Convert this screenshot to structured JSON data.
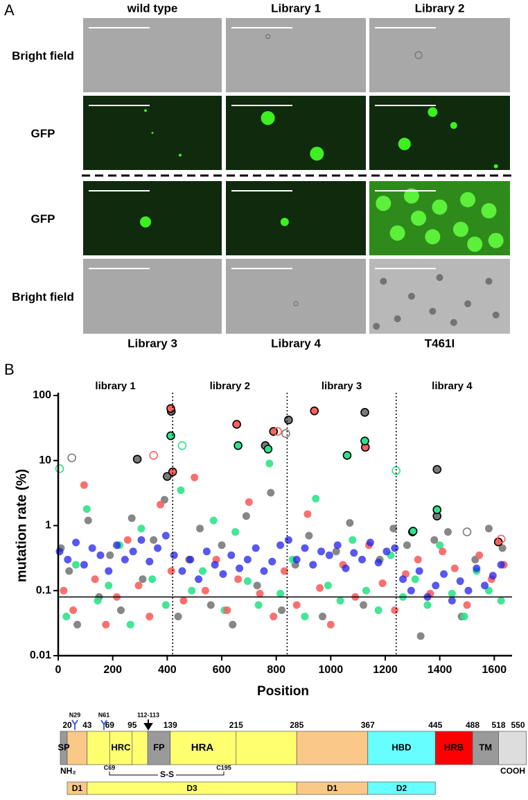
{
  "panel_a": {
    "label": "A",
    "columns_top": [
      "wild type",
      "Library 1",
      "Library 2"
    ],
    "rows": [
      "Bright field",
      "GFP",
      "GFP",
      "Bright field"
    ],
    "columns_bottom": [
      "Library 3",
      "Library 4",
      "T461I"
    ]
  },
  "chart_data": {
    "type": "scatter",
    "panel_label": "B",
    "x_label": "Position",
    "y_label": "mutation rate (%)",
    "xlim": [
      0,
      1650
    ],
    "xticks": [
      0,
      200,
      400,
      600,
      800,
      1000,
      1200,
      1400,
      1600
    ],
    "ylim": [
      0.01,
      100
    ],
    "yticks": [
      0.01,
      0.1,
      1,
      10,
      100
    ],
    "log_y": true,
    "dividers": [
      420,
      840,
      1240
    ],
    "threshold": 0.08,
    "annotations": [
      "library 1",
      "library 2",
      "library 3",
      "library 4"
    ],
    "series": [
      {
        "color": "#7a7a7a",
        "x": [
          10,
          40,
          70,
          110,
          150,
          190,
          230,
          270,
          310,
          350,
          390,
          440,
          480,
          520,
          560,
          600,
          640,
          690,
          730,
          780,
          820,
          870,
          920,
          970,
          1020,
          1070,
          1120,
          1180,
          1230,
          1280,
          1330,
          1380,
          1430,
          1480,
          1530,
          1580,
          1630
        ],
        "values": [
          0.45,
          0.2,
          0.03,
          1.2,
          0.08,
          0.35,
          0.05,
          1.3,
          0.15,
          0.6,
          2.5,
          0.04,
          0.3,
          0.9,
          0.06,
          0.5,
          0.03,
          1.4,
          0.12,
          3.2,
          0.05,
          0.25,
          0.7,
          0.04,
          0.4,
          1.1,
          0.06,
          0.3,
          0.9,
          0.5,
          0.02,
          0.6,
          0.8,
          0.04,
          0.3,
          0.9,
          0.45
        ]
      },
      {
        "color": "#2de38a",
        "x": [
          30,
          65,
          105,
          145,
          185,
          225,
          265,
          305,
          345,
          395,
          450,
          490,
          530,
          570,
          610,
          650,
          695,
          735,
          775,
          815,
          860,
          905,
          945,
          990,
          1035,
          1080,
          1130,
          1175,
          1220,
          1265,
          1310,
          1355,
          1400,
          1445,
          1490,
          1535,
          1580,
          1625
        ],
        "values": [
          0.04,
          0.25,
          1.8,
          0.07,
          0.12,
          0.5,
          0.03,
          0.9,
          0.15,
          0.06,
          3.5,
          0.1,
          0.2,
          1.2,
          0.05,
          0.8,
          0.14,
          0.06,
          9,
          0.09,
          0.3,
          0.04,
          2.6,
          0.12,
          0.07,
          0.6,
          0.1,
          0.05,
          0.35,
          0.08,
          0.15,
          0.06,
          0.5,
          0.09,
          0.04,
          0.2,
          0.1,
          0.07
        ]
      },
      {
        "color": "#f8625f",
        "x": [
          20,
          55,
          95,
          135,
          175,
          215,
          255,
          295,
          335,
          375,
          415,
          460,
          500,
          540,
          580,
          620,
          660,
          700,
          740,
          790,
          830,
          875,
          915,
          960,
          1000,
          1045,
          1090,
          1140,
          1190,
          1235,
          1275,
          1320,
          1365,
          1410,
          1455,
          1500,
          1545,
          1590,
          1635
        ],
        "values": [
          0.1,
          0.05,
          4.2,
          0.15,
          0.03,
          0.08,
          0.6,
          0.12,
          0.04,
          2.1,
          0.2,
          0.07,
          5.5,
          0.1,
          0.3,
          0.05,
          0.15,
          2.3,
          0.09,
          0.04,
          0.2,
          0.06,
          1.5,
          0.11,
          0.03,
          0.25,
          0.08,
          0.5,
          0.13,
          0.05,
          0.18,
          0.3,
          0.09,
          0.4,
          0.22,
          0.06,
          0.35,
          0.15,
          0.25
        ]
      },
      {
        "color": "#2020e8",
        "x": [
          5,
          35,
          65,
          95,
          125,
          155,
          185,
          215,
          245,
          275,
          305,
          335,
          365,
          395,
          425,
          455,
          485,
          515,
          545,
          575,
          605,
          635,
          665,
          695,
          725,
          755,
          785,
          815,
          845,
          875,
          905,
          935,
          965,
          995,
          1025,
          1055,
          1085,
          1115,
          1145,
          1175,
          1205,
          1235,
          1265,
          1295,
          1325,
          1355,
          1385,
          1415,
          1445,
          1475,
          1505,
          1535,
          1565,
          1595,
          1625
        ],
        "values": [
          0.4,
          0.3,
          0.55,
          0.25,
          0.45,
          0.35,
          0.2,
          0.5,
          0.3,
          0.4,
          0.6,
          0.28,
          0.45,
          0.7,
          0.35,
          0.2,
          0.3,
          0.15,
          0.4,
          0.25,
          0.18,
          0.35,
          0.22,
          0.3,
          0.45,
          0.2,
          0.28,
          0.5,
          0.6,
          0.3,
          0.45,
          0.25,
          0.4,
          0.35,
          0.5,
          0.22,
          0.38,
          0.3,
          0.55,
          0.27,
          0.4,
          0.45,
          0.15,
          0.1,
          0.2,
          0.08,
          0.12,
          0.18,
          0.07,
          0.14,
          0.1,
          0.22,
          0.12,
          0.17,
          0.25
        ]
      },
      {
        "color": "#7a7a7a",
        "edge": "#000000",
        "x": [
          290,
          400,
          415,
          760,
          845,
          1125,
          1390,
          1390,
          1300
        ],
        "values": [
          10.5,
          5.7,
          57,
          17,
          42,
          55,
          7.3,
          1.4,
          0.8
        ]
      },
      {
        "color": "#f8625f",
        "edge": "#000000",
        "x": [
          413,
          420,
          655,
          790,
          940,
          1127,
          1615
        ],
        "values": [
          63,
          6.7,
          36,
          28,
          58,
          16,
          0.56
        ]
      },
      {
        "color": "#2de38a",
        "edge": "#000000",
        "x": [
          413,
          660,
          770,
          1060,
          1125,
          1390,
          1302
        ],
        "values": [
          24,
          17,
          15,
          12,
          20,
          1.75,
          0.82
        ]
      },
      {
        "color": "#7a7a7a",
        "hollow": true,
        "x": [
          50,
          835,
          1500
        ],
        "values": [
          11,
          26,
          0.8
        ]
      },
      {
        "color": "#f8625f",
        "hollow": true,
        "x": [
          350,
          805,
          1625
        ],
        "values": [
          12,
          28,
          0.62
        ]
      },
      {
        "color": "#2de38a",
        "hollow": true,
        "x": [
          5,
          455,
          1240
        ],
        "values": [
          7.5,
          17,
          7
        ]
      }
    ]
  },
  "protein_map": {
    "boundaries": [
      20,
      43,
      69,
      95,
      139,
      215,
      285,
      367,
      445,
      488,
      518,
      550
    ],
    "domains": [
      "SP",
      "HRC",
      "FP",
      "HRA",
      "HBD",
      "HRB",
      "TM"
    ],
    "glycans": [
      "N29",
      "N61"
    ],
    "cleavage": "112-113",
    "termini": [
      "NH₂",
      "COOH"
    ],
    "disulfide": {
      "label": "S-S",
      "ends": [
        "C69",
        "C195"
      ]
    },
    "regions": [
      "D1",
      "D3",
      "D1",
      "D2"
    ]
  }
}
